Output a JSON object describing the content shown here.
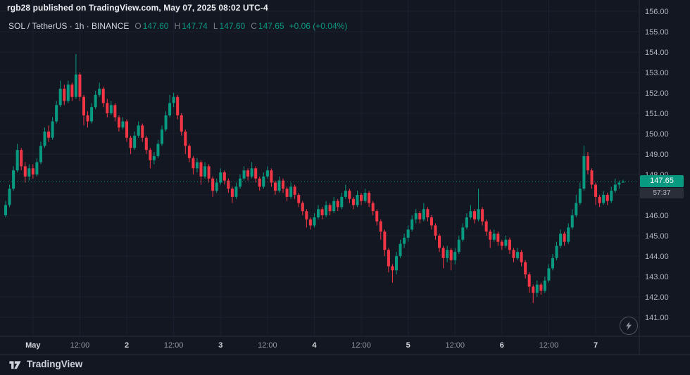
{
  "publish_bar": {
    "text": "rgb28 published on TradingView.com, May 07, 2025 08:02 UTC-4"
  },
  "symbol_info": {
    "title": "SOL / TetherUS · 1h · BINANCE",
    "ohlc": {
      "o_label": "O",
      "o_value": "147.60",
      "h_label": "H",
      "h_value": "147.74",
      "l_label": "L",
      "l_value": "147.60",
      "c_label": "C",
      "c_value": "147.65",
      "change": "+0.06 (+0.04%)"
    }
  },
  "price_label": {
    "value": "147.65",
    "countdown": "57:37",
    "price": 147.65
  },
  "price_axis": {
    "values": [
      156,
      155,
      154,
      153,
      152,
      151,
      150,
      149,
      148,
      147,
      146,
      145,
      144,
      143,
      142,
      141
    ]
  },
  "time_axis": {
    "ticks": [
      {
        "i": 7,
        "label": "May",
        "major": true
      },
      {
        "i": 19,
        "label": "12:00",
        "major": false
      },
      {
        "i": 31,
        "label": "2",
        "major": true
      },
      {
        "i": 43,
        "label": "12:00",
        "major": false
      },
      {
        "i": 55,
        "label": "3",
        "major": true
      },
      {
        "i": 67,
        "label": "12:00",
        "major": false
      },
      {
        "i": 79,
        "label": "4",
        "major": true
      },
      {
        "i": 91,
        "label": "12:00",
        "major": false
      },
      {
        "i": 103,
        "label": "5",
        "major": true
      },
      {
        "i": 115,
        "label": "12:00",
        "major": false
      },
      {
        "i": 127,
        "label": "6",
        "major": true
      },
      {
        "i": 139,
        "label": "12:00",
        "major": false
      },
      {
        "i": 151,
        "label": "7",
        "major": true
      }
    ]
  },
  "footer": {
    "brand": "TradingView"
  },
  "icons": {
    "quick_trade": "lightning-bolt",
    "logo": "tradingview-mark"
  },
  "colors": {
    "bg": "#131722",
    "up": "#089981",
    "down": "#f23645",
    "grid": "#1c2030",
    "axis_text": "#b2b5be",
    "separator": "#2a2e39"
  },
  "chart_data": {
    "type": "candlestick",
    "title": "SOL / TetherUS · 1h · BINANCE",
    "interval": "1h",
    "first_candle_time": "2025-04-30 17:00",
    "price_axis_range": [
      141,
      156
    ],
    "last_price": 147.65,
    "legend_last_bar": {
      "open": 147.6,
      "high": 147.74,
      "low": 147.6,
      "close": 147.65,
      "change": "+0.06 (+0.04%)"
    },
    "candles": [
      [
        146.0,
        146.7,
        145.9,
        146.5
      ],
      [
        146.5,
        147.5,
        146.4,
        147.3
      ],
      [
        147.3,
        148.4,
        147.2,
        148.2
      ],
      [
        148.2,
        149.5,
        148.1,
        149.2
      ],
      [
        149.2,
        149.3,
        148.2,
        148.4
      ],
      [
        148.4,
        148.6,
        147.6,
        147.9
      ],
      [
        147.9,
        148.5,
        147.7,
        148.3
      ],
      [
        148.3,
        148.5,
        147.8,
        148.0
      ],
      [
        148.0,
        148.8,
        147.9,
        148.6
      ],
      [
        148.6,
        149.6,
        148.5,
        149.4
      ],
      [
        149.4,
        150.3,
        149.3,
        150.1
      ],
      [
        150.1,
        150.4,
        149.6,
        149.8
      ],
      [
        149.8,
        150.8,
        149.7,
        150.6
      ],
      [
        150.6,
        151.6,
        150.5,
        151.4
      ],
      [
        151.4,
        152.6,
        151.3,
        152.2
      ],
      [
        152.2,
        152.4,
        151.4,
        151.6
      ],
      [
        151.6,
        152.6,
        151.5,
        152.4
      ],
      [
        152.4,
        152.5,
        151.6,
        151.8
      ],
      [
        151.8,
        153.9,
        151.7,
        152.9
      ],
      [
        152.9,
        153.0,
        151.6,
        151.8
      ],
      [
        151.8,
        151.9,
        150.4,
        150.9
      ],
      [
        150.9,
        151.1,
        150.3,
        150.6
      ],
      [
        150.6,
        151.5,
        150.5,
        151.3
      ],
      [
        151.3,
        152.1,
        151.2,
        151.9
      ],
      [
        151.9,
        152.5,
        151.8,
        152.2
      ],
      [
        152.2,
        152.3,
        151.3,
        151.5
      ],
      [
        151.5,
        151.7,
        150.8,
        151.0
      ],
      [
        151.0,
        151.6,
        150.9,
        151.4
      ],
      [
        151.4,
        151.5,
        150.6,
        150.8
      ],
      [
        150.8,
        150.9,
        150.1,
        150.3
      ],
      [
        150.3,
        150.8,
        150.2,
        150.6
      ],
      [
        150.6,
        150.7,
        149.6,
        149.8
      ],
      [
        149.8,
        149.9,
        149.0,
        149.3
      ],
      [
        149.3,
        150.1,
        149.2,
        149.9
      ],
      [
        149.9,
        150.6,
        149.8,
        150.4
      ],
      [
        150.4,
        150.5,
        149.6,
        149.8
      ],
      [
        149.8,
        149.9,
        149.0,
        149.2
      ],
      [
        149.2,
        149.3,
        148.3,
        148.7
      ],
      [
        148.7,
        149.1,
        148.5,
        148.9
      ],
      [
        148.9,
        149.7,
        148.8,
        149.5
      ],
      [
        149.5,
        150.4,
        149.4,
        150.2
      ],
      [
        150.2,
        151.1,
        150.1,
        150.9
      ],
      [
        150.9,
        151.9,
        150.8,
        151.5
      ],
      [
        151.5,
        152.0,
        151.3,
        151.8
      ],
      [
        151.8,
        151.9,
        150.7,
        150.9
      ],
      [
        150.9,
        151.0,
        149.9,
        150.1
      ],
      [
        150.1,
        150.2,
        149.0,
        149.4
      ],
      [
        149.4,
        149.5,
        148.6,
        148.8
      ],
      [
        148.8,
        148.9,
        148.0,
        148.3
      ],
      [
        148.3,
        148.8,
        148.1,
        148.6
      ],
      [
        148.6,
        148.7,
        147.5,
        147.9
      ],
      [
        147.9,
        148.6,
        147.8,
        148.4
      ],
      [
        148.4,
        148.5,
        147.6,
        147.8
      ],
      [
        147.8,
        147.9,
        146.9,
        147.2
      ],
      [
        147.2,
        147.8,
        147.1,
        147.6
      ],
      [
        147.6,
        148.3,
        147.5,
        148.1
      ],
      [
        148.1,
        148.2,
        147.5,
        147.7
      ],
      [
        147.7,
        147.8,
        147.1,
        147.3
      ],
      [
        147.3,
        147.4,
        146.6,
        146.9
      ],
      [
        146.9,
        147.6,
        146.8,
        147.4
      ],
      [
        147.4,
        148.0,
        147.3,
        147.8
      ],
      [
        147.8,
        148.4,
        147.7,
        148.2
      ],
      [
        148.2,
        148.3,
        147.7,
        147.9
      ],
      [
        147.9,
        148.6,
        147.8,
        148.3
      ],
      [
        148.3,
        148.4,
        147.6,
        147.8
      ],
      [
        147.8,
        147.9,
        147.2,
        147.4
      ],
      [
        147.4,
        148.1,
        147.3,
        147.9
      ],
      [
        147.9,
        148.4,
        147.8,
        148.2
      ],
      [
        148.2,
        148.3,
        147.4,
        147.6
      ],
      [
        147.6,
        147.7,
        147.0,
        147.2
      ],
      [
        147.2,
        147.9,
        147.1,
        147.7
      ],
      [
        147.7,
        147.8,
        147.1,
        147.3
      ],
      [
        147.3,
        147.4,
        146.7,
        146.9
      ],
      [
        146.9,
        147.6,
        146.8,
        147.4
      ],
      [
        147.4,
        147.5,
        146.8,
        147.0
      ],
      [
        147.0,
        147.1,
        146.4,
        146.6
      ],
      [
        146.6,
        146.7,
        146.0,
        146.2
      ],
      [
        146.2,
        146.3,
        145.4,
        145.8
      ],
      [
        145.8,
        145.9,
        145.3,
        145.5
      ],
      [
        145.5,
        146.1,
        145.4,
        145.9
      ],
      [
        145.9,
        146.5,
        145.8,
        146.3
      ],
      [
        146.3,
        146.4,
        145.8,
        146.0
      ],
      [
        146.0,
        146.7,
        145.9,
        146.5
      ],
      [
        146.5,
        146.6,
        146.0,
        146.2
      ],
      [
        146.2,
        146.9,
        146.1,
        146.7
      ],
      [
        146.7,
        146.8,
        146.2,
        146.4
      ],
      [
        146.4,
        147.1,
        146.3,
        146.9
      ],
      [
        146.9,
        147.5,
        146.8,
        147.2
      ],
      [
        147.2,
        147.3,
        146.6,
        146.8
      ],
      [
        146.8,
        146.9,
        146.3,
        146.5
      ],
      [
        146.5,
        147.2,
        146.4,
        147.0
      ],
      [
        147.0,
        147.1,
        146.5,
        146.7
      ],
      [
        146.7,
        147.3,
        146.6,
        147.1
      ],
      [
        147.1,
        147.2,
        146.4,
        146.6
      ],
      [
        146.6,
        146.7,
        146.0,
        146.2
      ],
      [
        146.2,
        146.3,
        145.5,
        145.7
      ],
      [
        145.7,
        145.8,
        144.8,
        145.2
      ],
      [
        145.2,
        145.3,
        144.0,
        144.3
      ],
      [
        144.3,
        144.4,
        143.2,
        143.5
      ],
      [
        143.5,
        143.6,
        142.7,
        143.3
      ],
      [
        143.3,
        144.2,
        143.1,
        144.0
      ],
      [
        144.0,
        144.8,
        143.9,
        144.6
      ],
      [
        144.6,
        145.1,
        144.4,
        144.9
      ],
      [
        144.9,
        145.5,
        144.7,
        145.3
      ],
      [
        145.3,
        146.0,
        145.2,
        145.8
      ],
      [
        145.8,
        146.3,
        145.6,
        146.1
      ],
      [
        146.1,
        146.2,
        145.6,
        145.8
      ],
      [
        145.8,
        146.6,
        145.7,
        146.3
      ],
      [
        146.3,
        146.4,
        145.7,
        145.9
      ],
      [
        145.9,
        146.0,
        145.3,
        145.5
      ],
      [
        145.5,
        145.6,
        144.8,
        145.0
      ],
      [
        145.0,
        145.1,
        144.2,
        144.4
      ],
      [
        144.4,
        144.5,
        143.4,
        143.9
      ],
      [
        143.9,
        144.5,
        143.7,
        144.3
      ],
      [
        144.3,
        144.4,
        143.3,
        143.8
      ],
      [
        143.8,
        144.4,
        143.6,
        144.2
      ],
      [
        144.2,
        145.0,
        144.1,
        144.8
      ],
      [
        144.8,
        145.6,
        144.7,
        145.4
      ],
      [
        145.4,
        146.1,
        145.3,
        145.9
      ],
      [
        145.9,
        146.5,
        145.8,
        146.2
      ],
      [
        146.2,
        146.3,
        145.6,
        145.8
      ],
      [
        145.8,
        147.3,
        145.7,
        146.3
      ],
      [
        146.3,
        146.4,
        145.5,
        145.7
      ],
      [
        145.7,
        145.8,
        145.0,
        145.2
      ],
      [
        145.2,
        145.3,
        144.4,
        144.8
      ],
      [
        144.8,
        145.3,
        144.7,
        145.1
      ],
      [
        145.1,
        145.2,
        144.5,
        144.7
      ],
      [
        144.7,
        144.8,
        144.3,
        144.5
      ],
      [
        144.5,
        145.0,
        144.4,
        144.8
      ],
      [
        144.8,
        144.9,
        144.1,
        144.3
      ],
      [
        144.3,
        144.4,
        143.7,
        143.9
      ],
      [
        143.9,
        144.4,
        143.8,
        144.2
      ],
      [
        144.2,
        144.3,
        143.5,
        143.7
      ],
      [
        143.7,
        143.8,
        142.9,
        143.1
      ],
      [
        143.1,
        143.2,
        142.2,
        142.5
      ],
      [
        142.5,
        142.6,
        141.7,
        142.2
      ],
      [
        142.2,
        142.8,
        142.0,
        142.6
      ],
      [
        142.6,
        142.7,
        142.1,
        142.3
      ],
      [
        142.3,
        143.0,
        142.2,
        142.8
      ],
      [
        142.8,
        143.6,
        142.7,
        143.4
      ],
      [
        143.4,
        144.1,
        143.3,
        143.9
      ],
      [
        143.9,
        144.7,
        143.8,
        144.5
      ],
      [
        144.5,
        145.3,
        144.4,
        145.1
      ],
      [
        145.1,
        145.2,
        144.5,
        144.7
      ],
      [
        144.7,
        145.6,
        144.6,
        145.4
      ],
      [
        145.4,
        146.3,
        145.3,
        146.0
      ],
      [
        146.0,
        147.0,
        145.9,
        146.6
      ],
      [
        146.6,
        147.6,
        146.5,
        147.3
      ],
      [
        147.3,
        149.4,
        147.2,
        148.9
      ],
      [
        148.9,
        149.1,
        148.0,
        148.2
      ],
      [
        148.2,
        148.3,
        147.3,
        147.5
      ],
      [
        147.5,
        147.6,
        146.5,
        146.9
      ],
      [
        146.9,
        147.0,
        146.4,
        146.6
      ],
      [
        146.6,
        147.2,
        146.5,
        147.0
      ],
      [
        147.0,
        147.1,
        146.5,
        146.7
      ],
      [
        146.7,
        147.4,
        146.6,
        147.2
      ],
      [
        147.2,
        147.8,
        147.1,
        147.5
      ],
      [
        147.5,
        147.7,
        147.3,
        147.6
      ],
      [
        147.6,
        147.74,
        147.6,
        147.65
      ]
    ]
  }
}
